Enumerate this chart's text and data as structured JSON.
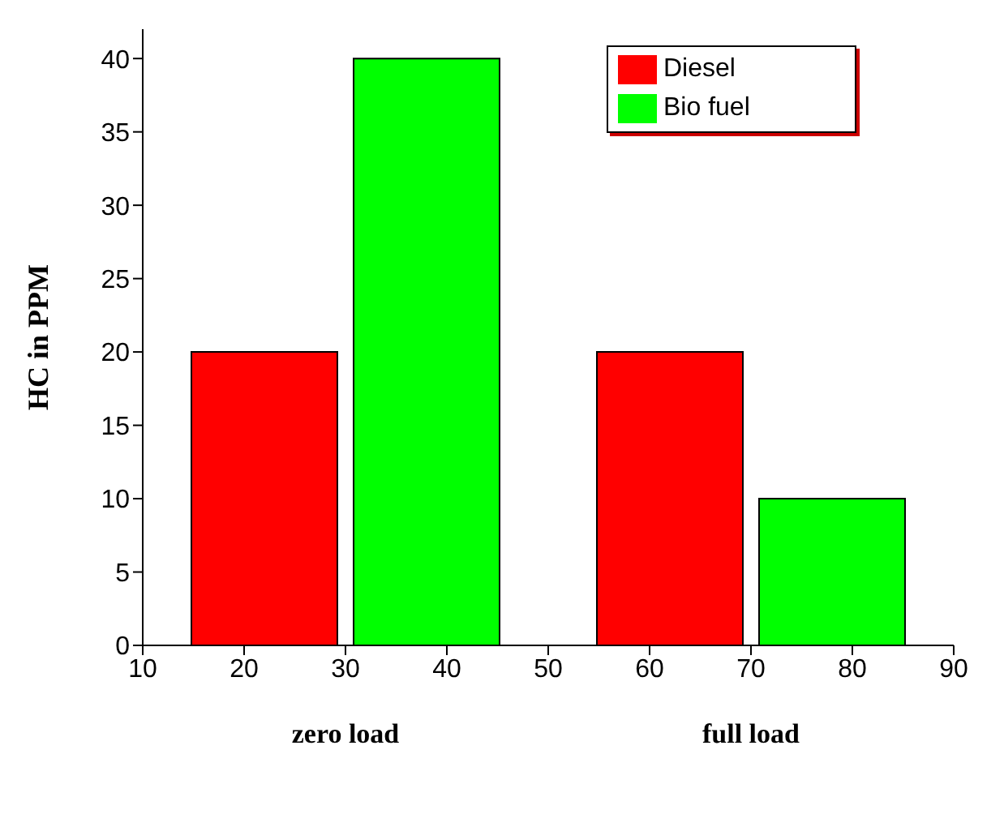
{
  "chart_data": {
    "type": "bar",
    "ylabel": "HC in PPM",
    "series": [
      {
        "name": "Diesel",
        "color": "#ff0000",
        "x": [
          22,
          62
        ],
        "values": [
          20,
          20
        ]
      },
      {
        "name": "Bio fuel",
        "color": "#00ff00",
        "x": [
          38,
          78
        ],
        "values": [
          40,
          10
        ]
      }
    ],
    "xlim": [
      10,
      90
    ],
    "xticks": [
      10,
      20,
      30,
      40,
      50,
      60,
      70,
      80,
      90
    ],
    "ylim": [
      0,
      42
    ],
    "yticks": [
      0,
      5,
      10,
      15,
      20,
      25,
      30,
      35,
      40
    ],
    "annotations": [
      "zero load",
      "full load"
    ],
    "legend": "top right",
    "grid": false
  }
}
